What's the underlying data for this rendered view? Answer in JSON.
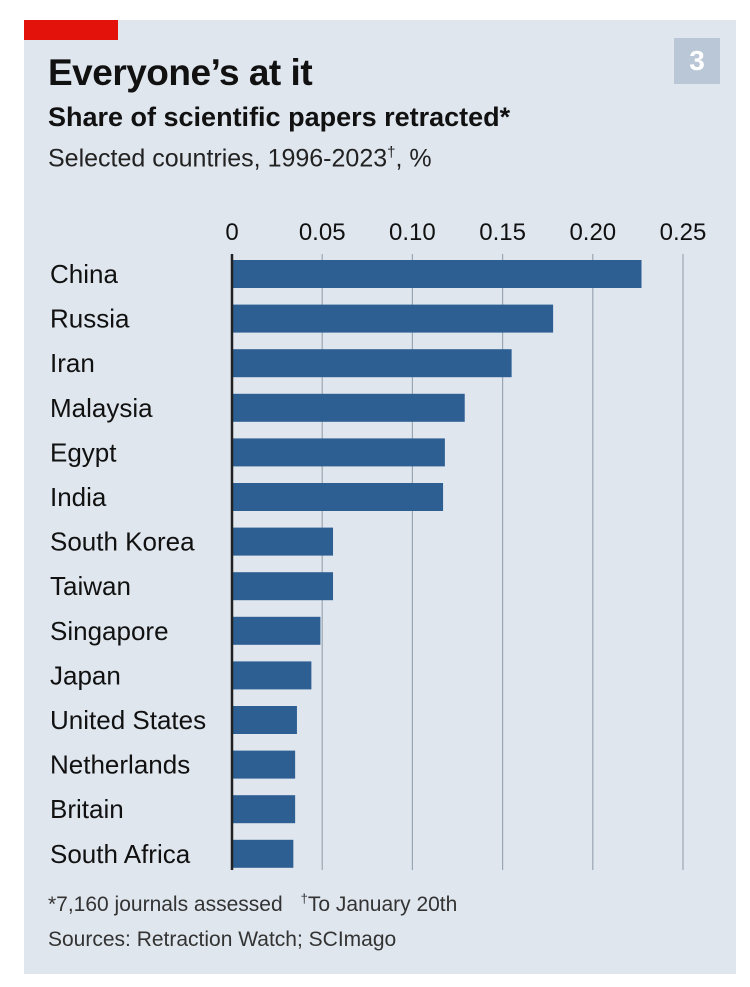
{
  "header": {
    "badge": "3",
    "title": "Everyone’s at it",
    "subtitle": "Share of scientific papers retracted*",
    "note": "Selected countries, 1996-2023",
    "note_mark": "†",
    "note_suffix": ", %"
  },
  "footer": {
    "footnote_1": "*7,160 journals assessed",
    "footnote_2_mark": "†",
    "footnote_2": "To January 20th",
    "sources": "Sources: Retraction Watch; SCImago"
  },
  "colors": {
    "bar": "#2d5f93",
    "accent_red": "#e3120b",
    "badge_bg": "#b9c7d6",
    "grid": "#9aa6b2",
    "axis": "#222222",
    "panel_bg": "#dfe6ee"
  },
  "chart_data": {
    "type": "bar",
    "orientation": "horizontal",
    "categories": [
      "China",
      "Russia",
      "Iran",
      "Malaysia",
      "Egypt",
      "India",
      "South Korea",
      "Taiwan",
      "Singapore",
      "Japan",
      "United States",
      "Netherlands",
      "Britain",
      "South Africa"
    ],
    "values": [
      0.227,
      0.178,
      0.155,
      0.129,
      0.118,
      0.117,
      0.056,
      0.056,
      0.049,
      0.044,
      0.036,
      0.035,
      0.035,
      0.034
    ],
    "x_ticks": [
      "0",
      "0.05",
      "0.10",
      "0.15",
      "0.20",
      "0.25"
    ],
    "x_tick_values": [
      0,
      0.05,
      0.1,
      0.15,
      0.2,
      0.25
    ],
    "xlim": [
      0,
      0.25
    ],
    "grid": true,
    "axis_position": "top"
  }
}
